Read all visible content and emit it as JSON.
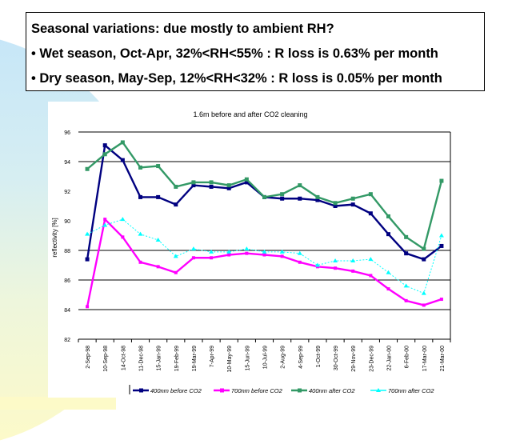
{
  "slide": {
    "heading": "Seasonal variations: due mostly to ambient RH?",
    "bullets": [
      "• Wet season, Oct-Apr, 32%<RH<55% : R loss is 0.63% per month",
      "• Dry season, May-Sep, 12%<RH<32% : R loss is 0.05% per month"
    ]
  },
  "chart_data": {
    "type": "line",
    "title": "1.6m before and after CO2 cleaning",
    "xlabel": "",
    "ylabel": "reflectivity [%]",
    "ylim": [
      82,
      96
    ],
    "yticks": [
      82,
      84,
      86,
      88,
      90,
      92,
      94,
      96
    ],
    "gridlines_at": [
      82,
      84,
      86,
      88,
      94,
      96
    ],
    "grid": true,
    "legend_position": "bottom",
    "categories": [
      "2-Sep-98",
      "10-Sep-98",
      "14-Oct-98",
      "11-Dec-98",
      "15-Jan-99",
      "19-Feb-99",
      "19-Mar-99",
      "7-Apr-99",
      "10-May-99",
      "15-Jun-99",
      "10-Jul-99",
      "2-Aug-99",
      "4-Sep-99",
      "1-Oct-99",
      "30-Oct-99",
      "29-Nov-99",
      "23-Dec-99",
      "22-Jan-00",
      "6-Feb-00",
      "17-Mar-00",
      "21-Mar-00"
    ],
    "series": [
      {
        "name": "400nm before CO2",
        "color": "#000080",
        "style": "solid",
        "marker": "square",
        "values": [
          87.4,
          95.1,
          94.1,
          91.6,
          91.6,
          91.1,
          92.4,
          92.3,
          92.2,
          92.6,
          91.6,
          91.5,
          91.5,
          91.4,
          91.0,
          91.1,
          90.5,
          89.1,
          87.8,
          87.4,
          88.3
        ]
      },
      {
        "name": "700nm before CO2",
        "color": "#ff00ff",
        "style": "solid",
        "marker": "plus",
        "values": [
          84.2,
          90.1,
          88.9,
          87.2,
          86.9,
          86.5,
          87.5,
          87.5,
          87.7,
          87.8,
          87.7,
          87.6,
          87.2,
          86.9,
          86.8,
          86.6,
          86.3,
          85.4,
          84.6,
          84.3,
          84.7
        ]
      },
      {
        "name": "400nm after CO2",
        "color": "#339966",
        "style": "solid",
        "marker": "square",
        "values": [
          93.5,
          94.5,
          95.3,
          93.6,
          93.7,
          92.3,
          92.6,
          92.6,
          92.4,
          92.8,
          91.6,
          91.8,
          92.4,
          91.6,
          91.2,
          91.5,
          91.8,
          90.3,
          88.9,
          88.1,
          92.7
        ]
      },
      {
        "name": "700nm after CO2",
        "color": "#00ffff",
        "style": "dotted",
        "marker": "triangle",
        "values": [
          89.1,
          89.7,
          90.1,
          89.1,
          88.7,
          87.6,
          88.1,
          87.9,
          87.9,
          88.1,
          87.9,
          87.9,
          87.8,
          87.0,
          87.3,
          87.3,
          87.4,
          86.5,
          85.6,
          85.1,
          89.0
        ]
      }
    ]
  }
}
